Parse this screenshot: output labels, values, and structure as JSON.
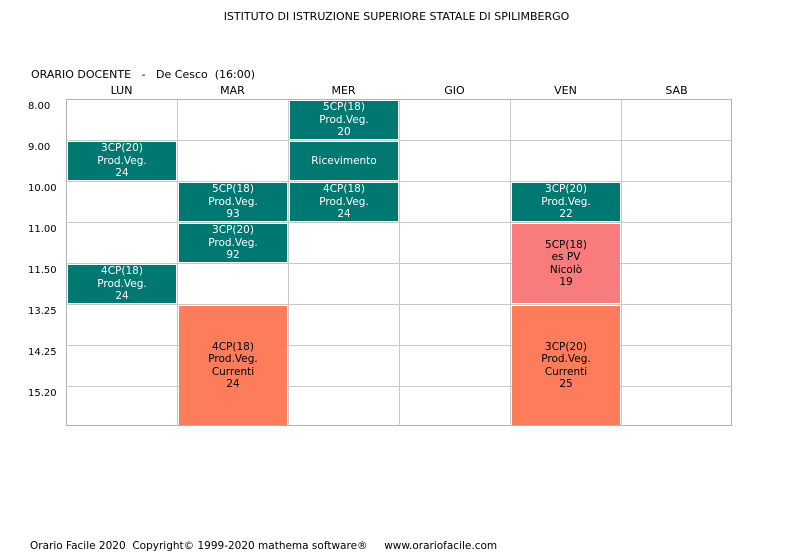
{
  "header": {
    "school": "ISTITUTO DI ISTRUZIONE SUPERIORE STATALE DI SPILIMBERGO",
    "subtitle": "ORARIO DOCENTE   -   De Cesco  (16:00)"
  },
  "days": [
    "LUN",
    "MAR",
    "MER",
    "GIO",
    "VEN",
    "SAB"
  ],
  "times": [
    "8.00",
    "9.00",
    "10.00",
    "11.00",
    "11.50",
    "13.25",
    "14.25",
    "15.20"
  ],
  "lessons": [
    {
      "id": "mer-1",
      "lines": [
        "5CP(18)",
        "Prod.Veg.",
        "20"
      ]
    },
    {
      "id": "lun-2",
      "lines": [
        "3CP(20)",
        "Prod.Veg.",
        "24"
      ]
    },
    {
      "id": "mer-2",
      "lines": [
        "Ricevimento"
      ]
    },
    {
      "id": "mar-3",
      "lines": [
        "5CP(18)",
        "Prod.Veg.",
        "93"
      ]
    },
    {
      "id": "mer-3",
      "lines": [
        "4CP(18)",
        "Prod.Veg.",
        "24"
      ]
    },
    {
      "id": "ven-3",
      "lines": [
        "3CP(20)",
        "Prod.Veg.",
        "22"
      ]
    },
    {
      "id": "mar-4",
      "lines": [
        "3CP(20)",
        "Prod.Veg.",
        "92"
      ]
    },
    {
      "id": "ven-45",
      "lines": [
        "5CP(18)",
        "es PV",
        "Nicolò",
        "19"
      ]
    },
    {
      "id": "lun-5",
      "lines": [
        "4CP(18)",
        "Prod.Veg.",
        "24"
      ]
    },
    {
      "id": "mar-678",
      "lines": [
        "4CP(18)",
        "Prod.Veg.",
        "Currenti",
        "24"
      ]
    },
    {
      "id": "ven-678",
      "lines": [
        "3CP(20)",
        "Prod.Veg.",
        "Currenti",
        "25"
      ]
    }
  ],
  "colors": {
    "teal": "#007872",
    "pink": "#f87c7c",
    "salmon": "#fc7c5c"
  },
  "footer": "Orario Facile 2020  Copyright© 1999-2020 mathema software®     www.orariofacile.com"
}
